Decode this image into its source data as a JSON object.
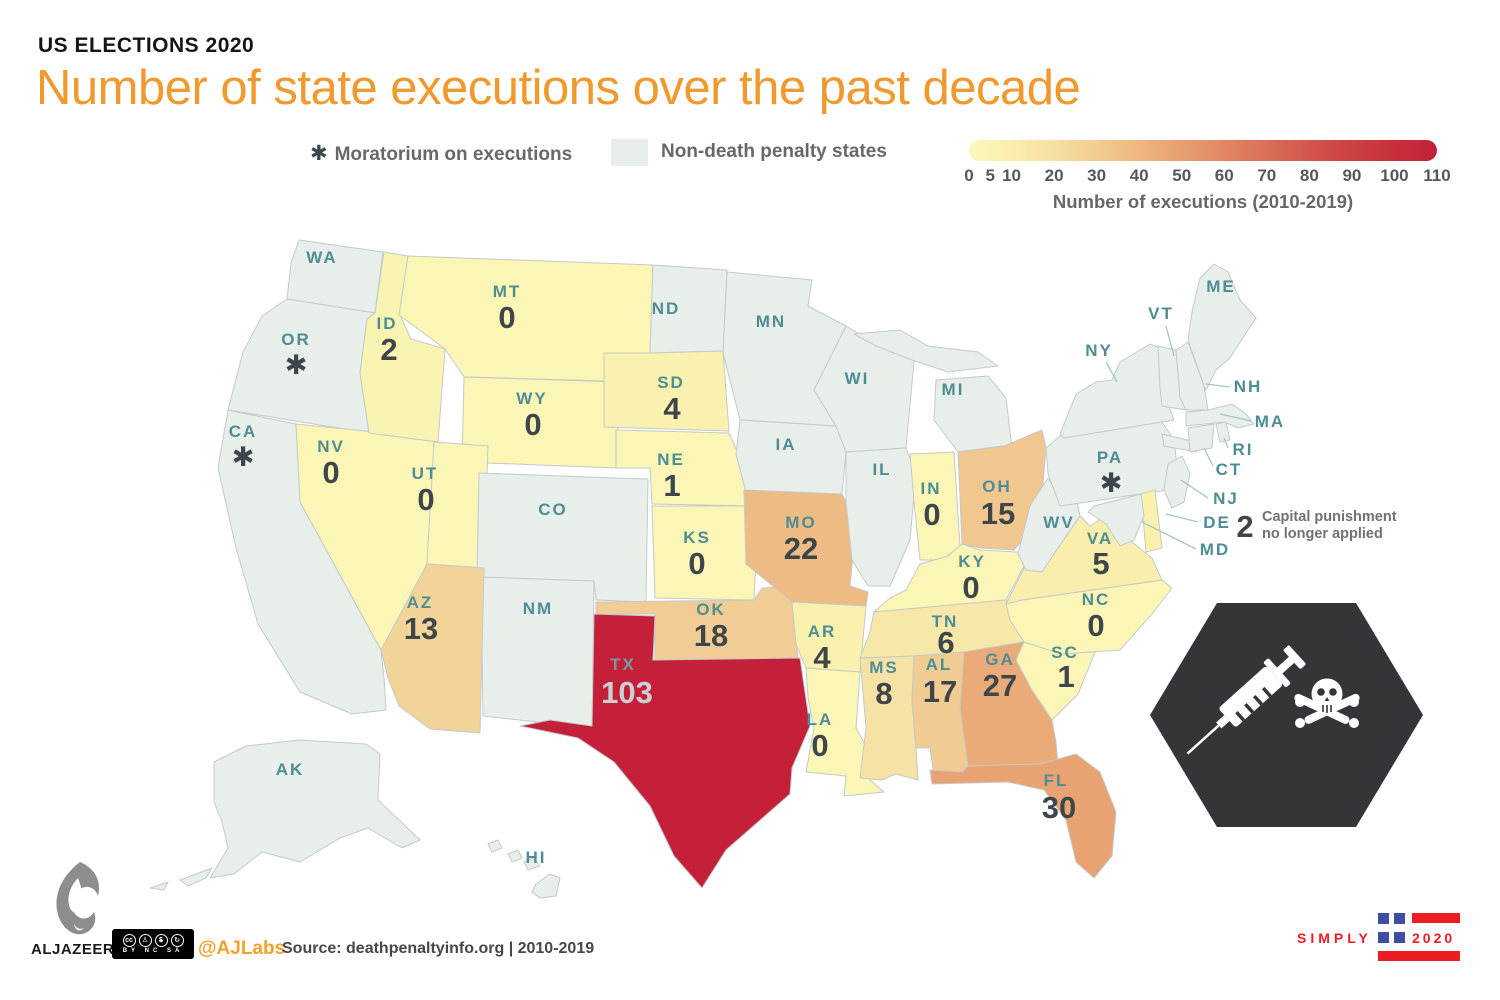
{
  "header": {
    "kicker": "US ELECTIONS 2020",
    "title": "Number of state executions over the past decade",
    "title_color": "#F0992E"
  },
  "legend": {
    "moratorium_symbol": "✱",
    "moratorium_label": "Moratorium on executions",
    "non_death_label": "Non-death penalty states",
    "non_death_swatch_color": "#E8EEE9"
  },
  "scale": {
    "caption": "Number of executions (2010-2019)",
    "min": 0,
    "max": 110,
    "ticks": [
      "0",
      "5",
      "10",
      "20",
      "30",
      "40",
      "50",
      "60",
      "70",
      "80",
      "90",
      "100",
      "110"
    ],
    "gradient": [
      "#FCF7BE",
      "#F9EBAB",
      "#F4D89B",
      "#EFBF85",
      "#E8A172",
      "#E08363",
      "#D76655",
      "#CE4A47",
      "#C8333C",
      "#C32138"
    ]
  },
  "annotation": {
    "value": "2",
    "line1": "Capital punishment",
    "line2": "no longer applied"
  },
  "icon_panel": {
    "background": "#333538",
    "icons": [
      "syringe-icon",
      "skull-crossbones-icon"
    ]
  },
  "map": {
    "label_color": "#4E8C96",
    "value_color": "#3F464A",
    "stroke_color": "#C3CACB",
    "leader_color": "#A6C4C8",
    "states": [
      {
        "abbr": "WA",
        "value": null,
        "status": "non_death",
        "fill": "#E8EEE9"
      },
      {
        "abbr": "OR",
        "value": null,
        "status": "moratorium",
        "fill": "#E8EEE9"
      },
      {
        "abbr": "CA",
        "value": null,
        "status": "moratorium",
        "fill": "#E8EEE9"
      },
      {
        "abbr": "NV",
        "value": 0,
        "status": "count",
        "fill": "#FBF5B6"
      },
      {
        "abbr": "ID",
        "value": 2,
        "status": "count",
        "fill": "#FAF4B2"
      },
      {
        "abbr": "MT",
        "value": 0,
        "status": "count",
        "fill": "#FBF5B6"
      },
      {
        "abbr": "WY",
        "value": 0,
        "status": "count",
        "fill": "#FBF5B6"
      },
      {
        "abbr": "UT",
        "value": 0,
        "status": "count",
        "fill": "#FBF5B6"
      },
      {
        "abbr": "CO",
        "value": null,
        "status": "non_death",
        "fill": "#E8EEE9"
      },
      {
        "abbr": "NM",
        "value": null,
        "status": "non_death",
        "fill": "#E8EEE9"
      },
      {
        "abbr": "AZ",
        "value": 13,
        "status": "count",
        "fill": "#F2D499"
      },
      {
        "abbr": "ND",
        "value": null,
        "status": "non_death",
        "fill": "#E8EEE9"
      },
      {
        "abbr": "SD",
        "value": 4,
        "status": "count",
        "fill": "#FAF1AE"
      },
      {
        "abbr": "NE",
        "value": 1,
        "status": "count",
        "fill": "#FBF5B6"
      },
      {
        "abbr": "KS",
        "value": 0,
        "status": "count",
        "fill": "#FBF5B6"
      },
      {
        "abbr": "OK",
        "value": 18,
        "status": "count",
        "fill": "#F1CD95"
      },
      {
        "abbr": "TX",
        "value": 103,
        "status": "count",
        "fill": "#C52039",
        "label_color": "#7C99A3",
        "value_color": "#CBD0D2"
      },
      {
        "abbr": "MN",
        "value": null,
        "status": "non_death",
        "fill": "#E8EEE9"
      },
      {
        "abbr": "IA",
        "value": null,
        "status": "non_death",
        "fill": "#E8EEE9"
      },
      {
        "abbr": "MO",
        "value": 22,
        "status": "count",
        "fill": "#EDBB83"
      },
      {
        "abbr": "AR",
        "value": 4,
        "status": "count",
        "fill": "#FAF1AE"
      },
      {
        "abbr": "LA",
        "value": 0,
        "status": "count",
        "fill": "#FBF5B6"
      },
      {
        "abbr": "WI",
        "value": null,
        "status": "non_death",
        "fill": "#E8EEE9"
      },
      {
        "abbr": "MI",
        "value": null,
        "status": "non_death",
        "fill": "#E8EEE9"
      },
      {
        "abbr": "IL",
        "value": null,
        "status": "non_death",
        "fill": "#E8EEE9"
      },
      {
        "abbr": "IN",
        "value": 0,
        "status": "count",
        "fill": "#FBF5B6"
      },
      {
        "abbr": "OH",
        "value": 15,
        "status": "count",
        "fill": "#F0C78E"
      },
      {
        "abbr": "KY",
        "value": 0,
        "status": "count",
        "fill": "#FBF5B6"
      },
      {
        "abbr": "TN",
        "value": 6,
        "status": "count",
        "fill": "#F7E7A8"
      },
      {
        "abbr": "MS",
        "value": 8,
        "status": "count",
        "fill": "#F6E2A4"
      },
      {
        "abbr": "AL",
        "value": 17,
        "status": "count",
        "fill": "#F0CB93"
      },
      {
        "abbr": "GA",
        "value": 27,
        "status": "count",
        "fill": "#EAAB78"
      },
      {
        "abbr": "FL",
        "value": 30,
        "status": "count",
        "fill": "#E9A372"
      },
      {
        "abbr": "SC",
        "value": 1,
        "status": "count",
        "fill": "#FBF5B6"
      },
      {
        "abbr": "NC",
        "value": 0,
        "status": "count",
        "fill": "#FBF5B6"
      },
      {
        "abbr": "VA",
        "value": 5,
        "status": "count",
        "fill": "#F9EEAC"
      },
      {
        "abbr": "WV",
        "value": null,
        "status": "non_death",
        "fill": "#E8EEE9"
      },
      {
        "abbr": "PA",
        "value": null,
        "status": "moratorium",
        "fill": "#E8EEE9"
      },
      {
        "abbr": "NY",
        "value": null,
        "status": "non_death",
        "fill": "#E8EEE9"
      },
      {
        "abbr": "ME",
        "value": null,
        "status": "non_death",
        "fill": "#E8EEE9"
      },
      {
        "abbr": "VT",
        "value": null,
        "status": "non_death",
        "fill": "#E8EEE9"
      },
      {
        "abbr": "NH",
        "value": null,
        "status": "non_death",
        "fill": "#E8EEE9"
      },
      {
        "abbr": "MA",
        "value": null,
        "status": "non_death",
        "fill": "#E8EEE9"
      },
      {
        "abbr": "RI",
        "value": null,
        "status": "non_death",
        "fill": "#E8EEE9"
      },
      {
        "abbr": "CT",
        "value": null,
        "status": "non_death",
        "fill": "#E8EEE9"
      },
      {
        "abbr": "NJ",
        "value": null,
        "status": "non_death",
        "fill": "#E8EEE9"
      },
      {
        "abbr": "DE",
        "value": 2,
        "status": "no_longer_applied",
        "fill": "#FAF2AC",
        "note": "Capital punishment no longer applied"
      },
      {
        "abbr": "MD",
        "value": null,
        "status": "non_death",
        "fill": "#E8EEE9"
      },
      {
        "abbr": "AK",
        "value": null,
        "status": "non_death",
        "fill": "#E8EEE9"
      },
      {
        "abbr": "HI",
        "value": null,
        "status": "non_death",
        "fill": "#E8EEE9"
      }
    ]
  },
  "chart_data": {
    "type": "choropleth",
    "title": "Number of state executions over the past decade",
    "unit": "executions (2010-2019)",
    "range": [
      0,
      110
    ],
    "series": [
      {
        "state": "TX",
        "value": 103
      },
      {
        "state": "FL",
        "value": 30
      },
      {
        "state": "GA",
        "value": 27
      },
      {
        "state": "MO",
        "value": 22
      },
      {
        "state": "OK",
        "value": 18
      },
      {
        "state": "AL",
        "value": 17
      },
      {
        "state": "OH",
        "value": 15
      },
      {
        "state": "AZ",
        "value": 13
      },
      {
        "state": "MS",
        "value": 8
      },
      {
        "state": "TN",
        "value": 6
      },
      {
        "state": "VA",
        "value": 5
      },
      {
        "state": "SD",
        "value": 4
      },
      {
        "state": "AR",
        "value": 4
      },
      {
        "state": "ID",
        "value": 2
      },
      {
        "state": "DE",
        "value": 2
      },
      {
        "state": "NE",
        "value": 1
      },
      {
        "state": "SC",
        "value": 1
      },
      {
        "state": "MT",
        "value": 0
      },
      {
        "state": "WY",
        "value": 0
      },
      {
        "state": "NV",
        "value": 0
      },
      {
        "state": "UT",
        "value": 0
      },
      {
        "state": "KS",
        "value": 0
      },
      {
        "state": "LA",
        "value": 0
      },
      {
        "state": "IN",
        "value": 0
      },
      {
        "state": "KY",
        "value": 0
      },
      {
        "state": "NC",
        "value": 0
      }
    ],
    "moratorium_states": [
      "OR",
      "CA",
      "PA"
    ],
    "non_death_penalty_states": [
      "WA",
      "NM",
      "CO",
      "ND",
      "MN",
      "IA",
      "WI",
      "IL",
      "MI",
      "WV",
      "NY",
      "ME",
      "VT",
      "NH",
      "MA",
      "RI",
      "CT",
      "NJ",
      "MD",
      "AK",
      "HI"
    ],
    "annotation": {
      "state": "DE",
      "value": 2,
      "text": "Capital punishment no longer applied"
    }
  },
  "footer": {
    "brand": "ALJAZEERA",
    "cc_symbols": [
      "cc",
      "♙",
      "$",
      "↻"
    ],
    "cc_text": "BY NC SA",
    "handle": "@AJLabs",
    "handle_color": "#F5A028",
    "source": "Source: deathpenaltyinfo.org | 2010-2019"
  },
  "simply2020": {
    "word": "SIMPLY",
    "year": "2020",
    "red": "#EC1C24",
    "blue": "#3D4F9F"
  }
}
